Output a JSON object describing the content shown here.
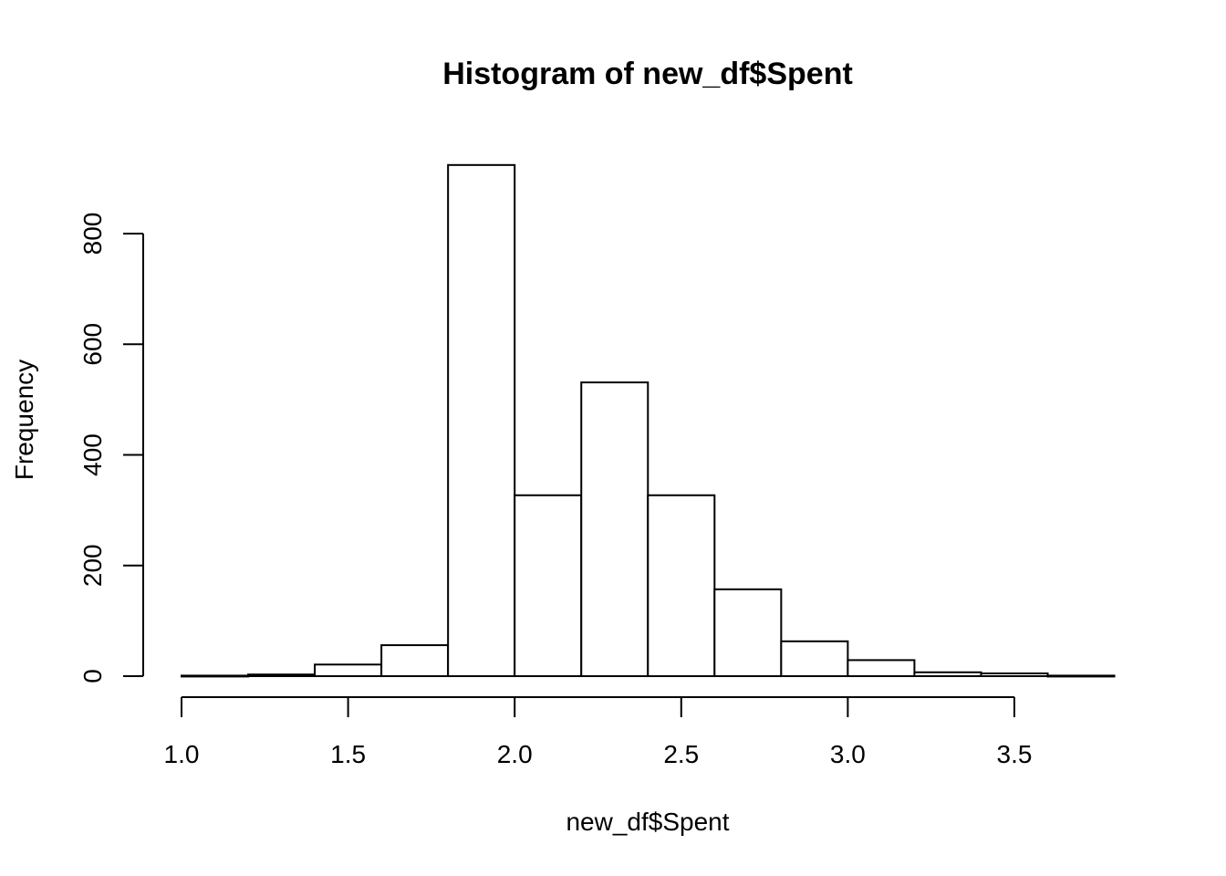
{
  "chart_data": {
    "type": "bar",
    "title": "Histogram of new_df$Spent",
    "xlabel": "new_df$Spent",
    "ylabel": "Frequency",
    "xlim": [
      1.0,
      3.8
    ],
    "ylim": [
      0,
      925
    ],
    "bin_width": 0.2,
    "bins": [
      {
        "start": 1.0,
        "end": 1.2,
        "value": 1
      },
      {
        "start": 1.2,
        "end": 1.4,
        "value": 3
      },
      {
        "start": 1.4,
        "end": 1.6,
        "value": 21
      },
      {
        "start": 1.6,
        "end": 1.8,
        "value": 56
      },
      {
        "start": 1.8,
        "end": 2.0,
        "value": 924
      },
      {
        "start": 2.0,
        "end": 2.2,
        "value": 327
      },
      {
        "start": 2.2,
        "end": 2.4,
        "value": 531
      },
      {
        "start": 2.4,
        "end": 2.6,
        "value": 327
      },
      {
        "start": 2.6,
        "end": 2.8,
        "value": 157
      },
      {
        "start": 2.8,
        "end": 3.0,
        "value": 63
      },
      {
        "start": 3.0,
        "end": 3.2,
        "value": 29
      },
      {
        "start": 3.2,
        "end": 3.4,
        "value": 7
      },
      {
        "start": 3.4,
        "end": 3.6,
        "value": 5
      },
      {
        "start": 3.6,
        "end": 3.8,
        "value": 1
      }
    ],
    "x_ticks": [
      {
        "value": 1.0,
        "label": "1.0"
      },
      {
        "value": 1.5,
        "label": "1.5"
      },
      {
        "value": 2.0,
        "label": "2.0"
      },
      {
        "value": 2.5,
        "label": "2.5"
      },
      {
        "value": 3.0,
        "label": "3.0"
      },
      {
        "value": 3.5,
        "label": "3.5"
      }
    ],
    "y_ticks": [
      {
        "value": 0,
        "label": "0"
      },
      {
        "value": 200,
        "label": "200"
      },
      {
        "value": 400,
        "label": "400"
      },
      {
        "value": 600,
        "label": "600"
      },
      {
        "value": 800,
        "label": "800"
      }
    ],
    "grid": false,
    "legend": "none"
  }
}
